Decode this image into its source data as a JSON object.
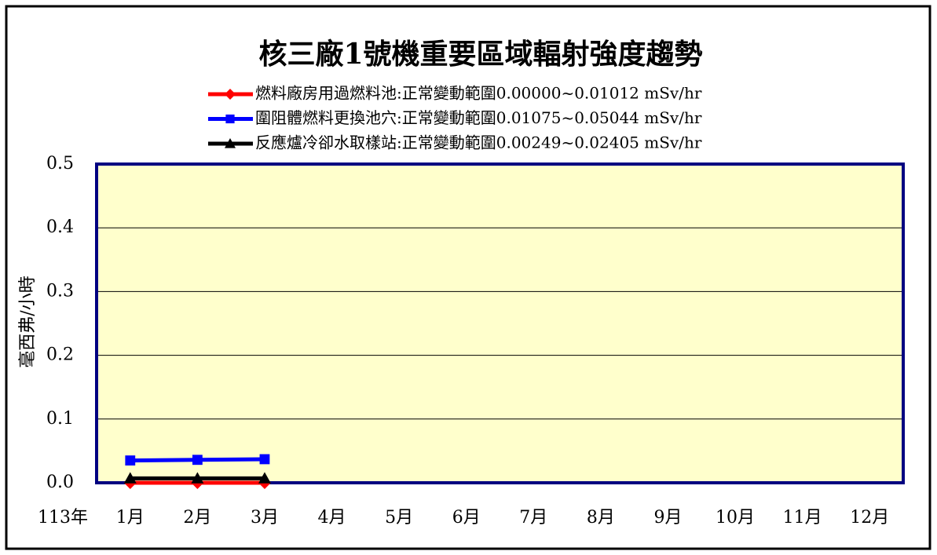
{
  "chart_data": {
    "type": "line",
    "title": "核三廠1號機重要區域輻射強度趨勢",
    "ylabel": "毫西弗/小時",
    "xlabel": "113年",
    "categories": [
      "1月",
      "2月",
      "3月",
      "4月",
      "5月",
      "6月",
      "7月",
      "8月",
      "9月",
      "10月",
      "11月",
      "12月"
    ],
    "series": [
      {
        "name": "燃料廠房用過燃料池:正常變動範圍0.00000~0.01012 mSv/hr",
        "color": "#ff0000",
        "marker": "diamond",
        "values": [
          0.0,
          0.0,
          0.0,
          null,
          null,
          null,
          null,
          null,
          null,
          null,
          null,
          null
        ]
      },
      {
        "name": "圍阻體燃料更換池穴:正常變動範圍0.01075~0.05044 mSv/hr",
        "color": "#0000ff",
        "marker": "square",
        "values": [
          0.035,
          0.036,
          0.037,
          null,
          null,
          null,
          null,
          null,
          null,
          null,
          null,
          null
        ]
      },
      {
        "name": "反應爐冷卻水取樣站:正常變動範圍0.00249~0.02405 mSv/hr",
        "color": "#000000",
        "marker": "triangle",
        "values": [
          0.007,
          0.007,
          0.007,
          null,
          null,
          null,
          null,
          null,
          null,
          null,
          null,
          null
        ]
      }
    ],
    "ylim": [
      0,
      0.5
    ],
    "yticks": [
      {
        "value": 0,
        "label": "0.0"
      },
      0.1,
      0.2,
      0.3,
      0.4,
      0.5
    ],
    "grid": true,
    "plot_background": "#ffffcc",
    "plot_border": "#000080"
  }
}
